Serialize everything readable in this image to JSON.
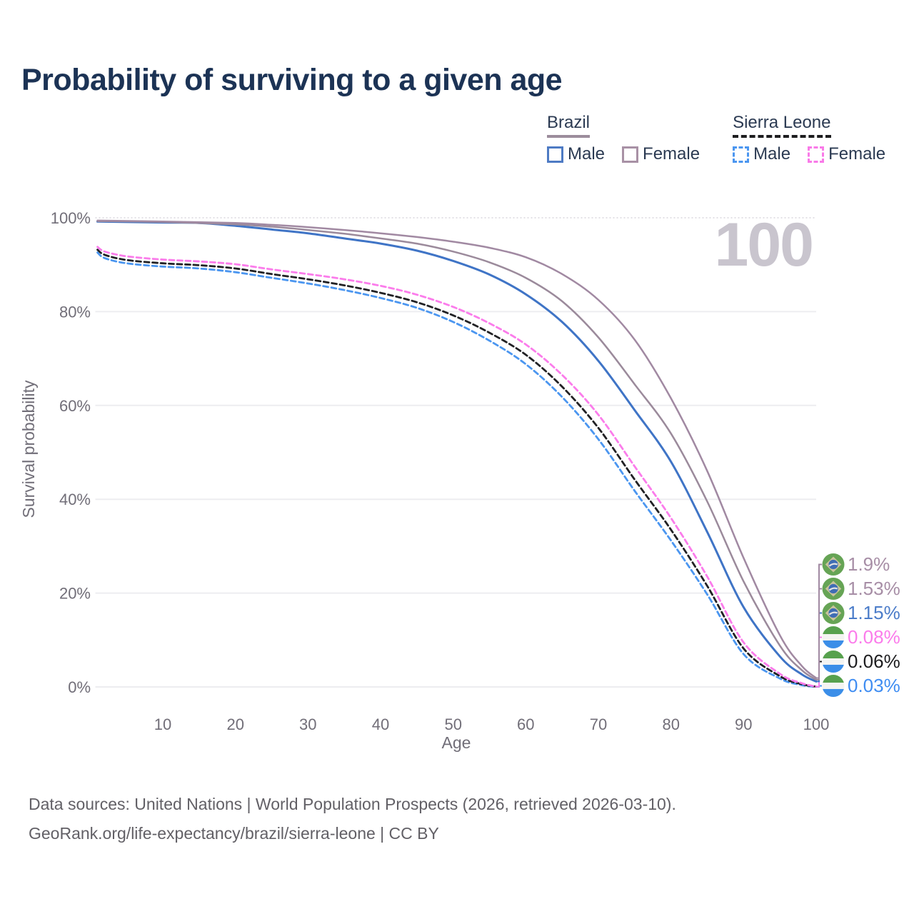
{
  "title": "Probability of surviving to a given age",
  "watermark_age": "100",
  "legend": {
    "groups": [
      {
        "label": "Brazil",
        "line_style": "solid",
        "underline_color": "#9c8d9c",
        "items": [
          {
            "label": "Male",
            "color": "#4e7bc4",
            "dashed": false
          },
          {
            "label": "Female",
            "color": "#a891a5",
            "dashed": false
          }
        ]
      },
      {
        "label": "Sierra Leone",
        "line_style": "dashed",
        "underline_color": "#1d1d1f",
        "items": [
          {
            "label": "Male",
            "color": "#4b96f0",
            "dashed": true
          },
          {
            "label": "Female",
            "color": "#f97ae8",
            "dashed": true
          }
        ]
      }
    ]
  },
  "chart_data": {
    "type": "line",
    "title": "Probability of surviving to a given age",
    "xlabel": "Age",
    "ylabel": "Survival probability",
    "xlim": [
      1,
      100
    ],
    "ylim": [
      0,
      100
    ],
    "grid": "horizontal",
    "legend_position": "top-right",
    "x_ticks": [
      10,
      20,
      30,
      40,
      50,
      60,
      70,
      80,
      90,
      100
    ],
    "y_ticks": [
      {
        "value": 0,
        "label": "0%"
      },
      {
        "value": 20,
        "label": "20%"
      },
      {
        "value": 40,
        "label": "40%"
      },
      {
        "value": 60,
        "label": "60%"
      },
      {
        "value": 80,
        "label": "80%"
      },
      {
        "value": 100,
        "label": "100%"
      }
    ],
    "series": [
      {
        "id": "sierra-leone-male",
        "name": "Sierra Leone — Male",
        "country": "sierra-leone",
        "flag_icon": "sierra-leone-flag-icon",
        "color": "#4b96f0",
        "dashed": true,
        "width": 2.8,
        "end_label": "0.03%",
        "end_label_color": "#3f8df2",
        "points": [
          [
            1,
            92.6
          ],
          [
            2,
            91.4
          ],
          [
            5,
            90.3
          ],
          [
            10,
            89.6
          ],
          [
            15,
            89.2
          ],
          [
            20,
            88.4
          ],
          [
            25,
            87.2
          ],
          [
            30,
            86.0
          ],
          [
            35,
            84.6
          ],
          [
            40,
            82.9
          ],
          [
            45,
            80.8
          ],
          [
            50,
            77.8
          ],
          [
            55,
            73.8
          ],
          [
            60,
            68.8
          ],
          [
            65,
            61.8
          ],
          [
            70,
            52.8
          ],
          [
            75,
            41.8
          ],
          [
            80,
            31.2
          ],
          [
            85,
            19.7
          ],
          [
            90,
            7.0
          ],
          [
            95,
            1.8
          ],
          [
            98,
            0.4
          ],
          [
            100,
            0.03
          ]
        ]
      },
      {
        "id": "sierra-leone-total",
        "name": "Sierra Leone — Total",
        "country": "sierra-leone",
        "flag_icon": "sierra-leone-flag-icon",
        "color": "#212124",
        "dashed": true,
        "width": 2.8,
        "end_label": "0.06%",
        "end_label_color": "#1d1d1f",
        "points": [
          [
            1,
            93.2
          ],
          [
            2,
            92.1
          ],
          [
            5,
            91.0
          ],
          [
            10,
            90.3
          ],
          [
            15,
            89.9
          ],
          [
            20,
            89.2
          ],
          [
            25,
            88.0
          ],
          [
            30,
            86.9
          ],
          [
            35,
            85.6
          ],
          [
            40,
            84.0
          ],
          [
            45,
            82.0
          ],
          [
            50,
            79.2
          ],
          [
            55,
            75.5
          ],
          [
            60,
            70.8
          ],
          [
            65,
            64.0
          ],
          [
            70,
            55.2
          ],
          [
            75,
            44.2
          ],
          [
            80,
            33.5
          ],
          [
            85,
            21.5
          ],
          [
            90,
            8.2
          ],
          [
            95,
            2.3
          ],
          [
            98,
            0.6
          ],
          [
            100,
            0.06
          ]
        ]
      },
      {
        "id": "sierra-leone-female",
        "name": "Sierra Leone — Female",
        "country": "sierra-leone",
        "flag_icon": "sierra-leone-flag-icon",
        "color": "#fb7ceb",
        "dashed": true,
        "width": 2.8,
        "end_label": "0.08%",
        "end_label_color": "#fb7ceb",
        "points": [
          [
            1,
            93.8
          ],
          [
            2,
            92.8
          ],
          [
            5,
            91.8
          ],
          [
            10,
            91.1
          ],
          [
            15,
            90.7
          ],
          [
            20,
            90.1
          ],
          [
            25,
            89.0
          ],
          [
            30,
            88.0
          ],
          [
            35,
            86.9
          ],
          [
            40,
            85.5
          ],
          [
            45,
            83.6
          ],
          [
            50,
            81.0
          ],
          [
            55,
            77.5
          ],
          [
            60,
            73.0
          ],
          [
            65,
            66.5
          ],
          [
            70,
            58.0
          ],
          [
            75,
            47.0
          ],
          [
            80,
            36.0
          ],
          [
            85,
            23.5
          ],
          [
            90,
            9.5
          ],
          [
            95,
            2.8
          ],
          [
            98,
            0.8
          ],
          [
            100,
            0.08
          ]
        ]
      },
      {
        "id": "brazil-male",
        "name": "Brazil — Male",
        "country": "brazil",
        "flag_icon": "brazil-flag-icon",
        "color": "#3f74c6",
        "dashed": false,
        "width": 3,
        "end_label": "1.15%",
        "end_label_color": "#4b7cc9",
        "points": [
          [
            1,
            99.2
          ],
          [
            10,
            99.0
          ],
          [
            15,
            98.9
          ],
          [
            20,
            98.3
          ],
          [
            25,
            97.5
          ],
          [
            30,
            96.7
          ],
          [
            35,
            95.6
          ],
          [
            40,
            94.5
          ],
          [
            45,
            93.0
          ],
          [
            50,
            90.8
          ],
          [
            55,
            87.9
          ],
          [
            60,
            83.7
          ],
          [
            65,
            77.8
          ],
          [
            70,
            69.5
          ],
          [
            75,
            59.0
          ],
          [
            80,
            48.0
          ],
          [
            85,
            33.0
          ],
          [
            90,
            17.0
          ],
          [
            95,
            6.5
          ],
          [
            98,
            2.7
          ],
          [
            100,
            1.15
          ]
        ]
      },
      {
        "id": "brazil-total",
        "name": "Brazil — Total",
        "country": "brazil",
        "flag_icon": "brazil-flag-icon",
        "color": "#9b8a9b",
        "dashed": false,
        "width": 2.5,
        "end_label": "1.53%",
        "end_label_color": "#a78ea6",
        "points": [
          [
            1,
            99.3
          ],
          [
            10,
            99.1
          ],
          [
            20,
            98.6
          ],
          [
            25,
            98.1
          ],
          [
            30,
            97.4
          ],
          [
            35,
            96.6
          ],
          [
            40,
            95.6
          ],
          [
            45,
            94.5
          ],
          [
            50,
            92.8
          ],
          [
            55,
            90.5
          ],
          [
            60,
            87.2
          ],
          [
            65,
            82.2
          ],
          [
            70,
            74.5
          ],
          [
            75,
            64.5
          ],
          [
            80,
            54.0
          ],
          [
            85,
            39.5
          ],
          [
            90,
            22.5
          ],
          [
            95,
            8.8
          ],
          [
            98,
            3.6
          ],
          [
            100,
            1.53
          ]
        ]
      },
      {
        "id": "brazil-female",
        "name": "Brazil — Female",
        "country": "brazil",
        "flag_icon": "brazil-flag-icon",
        "color": "#a189a2",
        "dashed": false,
        "width": 2.5,
        "end_label": "1.9%",
        "end_label_color": "#a78ea6",
        "points": [
          [
            1,
            99.4
          ],
          [
            10,
            99.2
          ],
          [
            20,
            98.9
          ],
          [
            25,
            98.5
          ],
          [
            30,
            98.0
          ],
          [
            35,
            97.4
          ],
          [
            40,
            96.7
          ],
          [
            45,
            95.9
          ],
          [
            50,
            94.9
          ],
          [
            55,
            93.6
          ],
          [
            60,
            91.6
          ],
          [
            65,
            88.0
          ],
          [
            70,
            82.5
          ],
          [
            75,
            74.0
          ],
          [
            80,
            61.5
          ],
          [
            85,
            46.0
          ],
          [
            90,
            27.5
          ],
          [
            95,
            11.0
          ],
          [
            98,
            4.5
          ],
          [
            100,
            1.9
          ]
        ]
      }
    ]
  },
  "footer": {
    "line1": "Data sources: United Nations | World Population Prospects (2026, retrieved 2026-03-10).",
    "line2": "GeoRank.org/life-expectancy/brazil/sierra-leone | CC BY"
  },
  "ui_colors": {
    "title": "#1c3355",
    "axis_text": "#716e78",
    "grid": "#ededf0",
    "grid_top_dotted": "#d9d6dd",
    "watermark": "#c9c5ce",
    "footer_text": "#626066",
    "legend_text": "#2b3a52"
  }
}
